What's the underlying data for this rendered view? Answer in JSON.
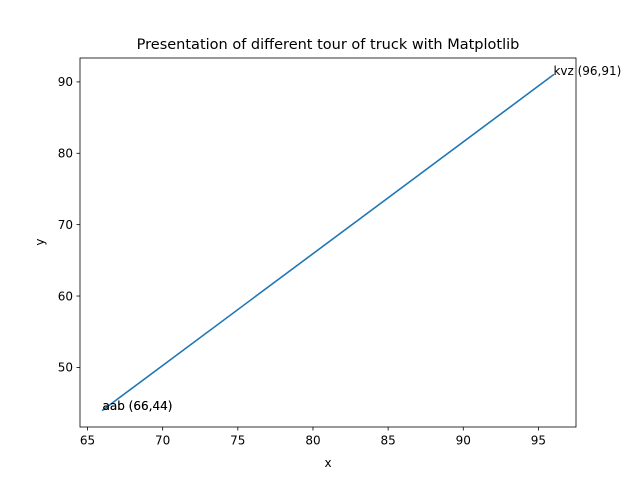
{
  "chart_data": {
    "type": "line",
    "title": "Presentation of different tour of truck with Matplotlib",
    "xlabel": "x",
    "ylabel": "y",
    "xlim": [
      64.5,
      97.5
    ],
    "ylim": [
      41.65,
      93.35
    ],
    "xticks": [
      65,
      70,
      75,
      80,
      85,
      90,
      95
    ],
    "yticks": [
      50,
      60,
      70,
      80,
      90
    ],
    "grid": false,
    "series": [
      {
        "color": "#1f77b4",
        "x": [
          66,
          96,
          66,
          96,
          66,
          96,
          66
        ],
        "y": [
          44,
          91,
          44,
          91,
          44,
          91,
          44
        ]
      }
    ],
    "annotations": [
      {
        "text": "aab (66,44)",
        "x": 66,
        "y": 44
      },
      {
        "text": "aab (66,44)",
        "x": 66,
        "y": 44
      },
      {
        "text": "kvz (96,91)",
        "x": 96,
        "y": 91
      }
    ]
  }
}
